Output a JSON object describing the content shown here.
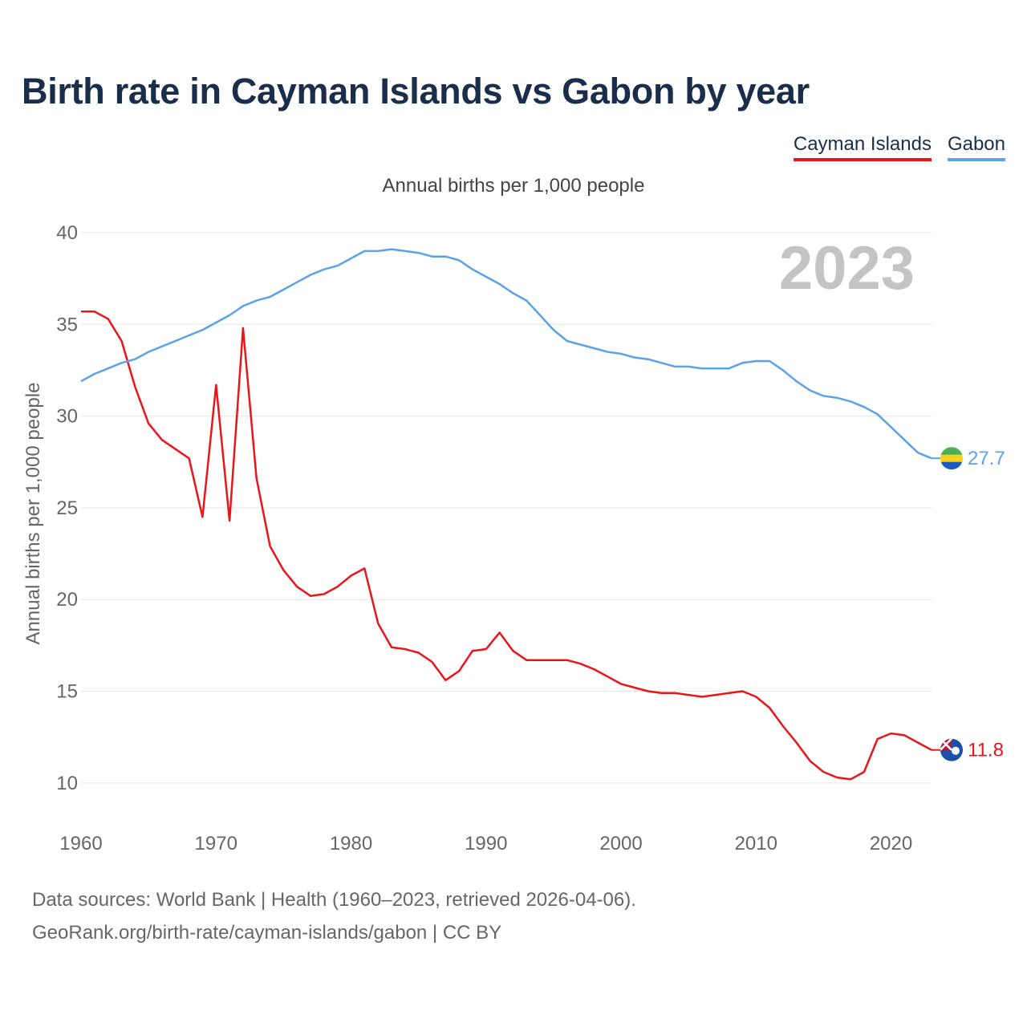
{
  "title": "Birth rate in Cayman Islands vs Gabon by year",
  "subtitle": "Annual births per 1,000 people",
  "legend": {
    "cayman": "Cayman Islands",
    "gabon": "Gabon"
  },
  "sources": {
    "line1": "Data sources: World Bank | Health (1960–2023, retrieved 2026-04-06).",
    "line2": "GeoRank.org/birth-rate/cayman-islands/gabon | CC BY"
  },
  "colors": {
    "cayman": "#e8161b",
    "gabon": "#5ba3e6",
    "grid": "#e6e6e6",
    "tick": "#666666",
    "year": "#c4c4c4"
  },
  "chart_data": {
    "type": "line",
    "title": "Birth rate in Cayman Islands vs Gabon by year",
    "xlabel": "",
    "ylabel": "Annual births per 1,000 people",
    "xlim": [
      1960,
      2023
    ],
    "ylim": [
      7.5,
      40
    ],
    "yticks": [
      10,
      15,
      20,
      25,
      30,
      35,
      40
    ],
    "xticks": [
      1960,
      1970,
      1980,
      1990,
      2000,
      2010,
      2020
    ],
    "year_label": "2023",
    "x": [
      1960,
      1961,
      1962,
      1963,
      1964,
      1965,
      1966,
      1967,
      1968,
      1969,
      1970,
      1971,
      1972,
      1973,
      1974,
      1975,
      1976,
      1977,
      1978,
      1979,
      1980,
      1981,
      1982,
      1983,
      1984,
      1985,
      1986,
      1987,
      1988,
      1989,
      1990,
      1991,
      1992,
      1993,
      1994,
      1995,
      1996,
      1997,
      1998,
      1999,
      2000,
      2001,
      2002,
      2003,
      2004,
      2005,
      2006,
      2007,
      2008,
      2009,
      2010,
      2011,
      2012,
      2013,
      2014,
      2015,
      2016,
      2017,
      2018,
      2019,
      2020,
      2021,
      2022,
      2023
    ],
    "series": [
      {
        "name": "Cayman Islands",
        "end_label": "11.8",
        "values": [
          35.7,
          35.7,
          35.3,
          34.1,
          31.6,
          29.6,
          28.7,
          28.2,
          27.7,
          24.5,
          31.7,
          24.3,
          34.8,
          26.6,
          22.9,
          21.6,
          20.7,
          20.2,
          20.3,
          20.7,
          21.3,
          21.7,
          18.7,
          17.4,
          17.3,
          17.1,
          16.6,
          15.6,
          16.1,
          17.2,
          17.3,
          18.2,
          17.2,
          16.7,
          16.7,
          16.7,
          16.7,
          16.5,
          16.2,
          15.8,
          15.4,
          15.2,
          15.0,
          14.9,
          14.9,
          14.8,
          14.7,
          14.8,
          14.9,
          15.0,
          14.7,
          14.1,
          13.1,
          12.2,
          11.2,
          10.6,
          10.3,
          10.2,
          10.6,
          12.4,
          12.7,
          12.6,
          12.2,
          11.8
        ]
      },
      {
        "name": "Gabon",
        "end_label": "27.7",
        "values": [
          31.9,
          32.3,
          32.6,
          32.9,
          33.1,
          33.5,
          33.8,
          34.1,
          34.4,
          34.7,
          35.1,
          35.5,
          36.0,
          36.3,
          36.5,
          36.9,
          37.3,
          37.7,
          38.0,
          38.2,
          38.6,
          39.0,
          39.0,
          39.1,
          39.0,
          38.9,
          38.7,
          38.7,
          38.5,
          38.0,
          37.6,
          37.2,
          36.7,
          36.3,
          35.5,
          34.7,
          34.1,
          33.9,
          33.7,
          33.5,
          33.4,
          33.2,
          33.1,
          32.9,
          32.7,
          32.7,
          32.6,
          32.6,
          32.6,
          32.9,
          33.0,
          33.0,
          32.5,
          31.9,
          31.4,
          31.1,
          31.0,
          30.8,
          30.5,
          30.1,
          29.4,
          28.7,
          28.0,
          27.7
        ]
      }
    ]
  }
}
